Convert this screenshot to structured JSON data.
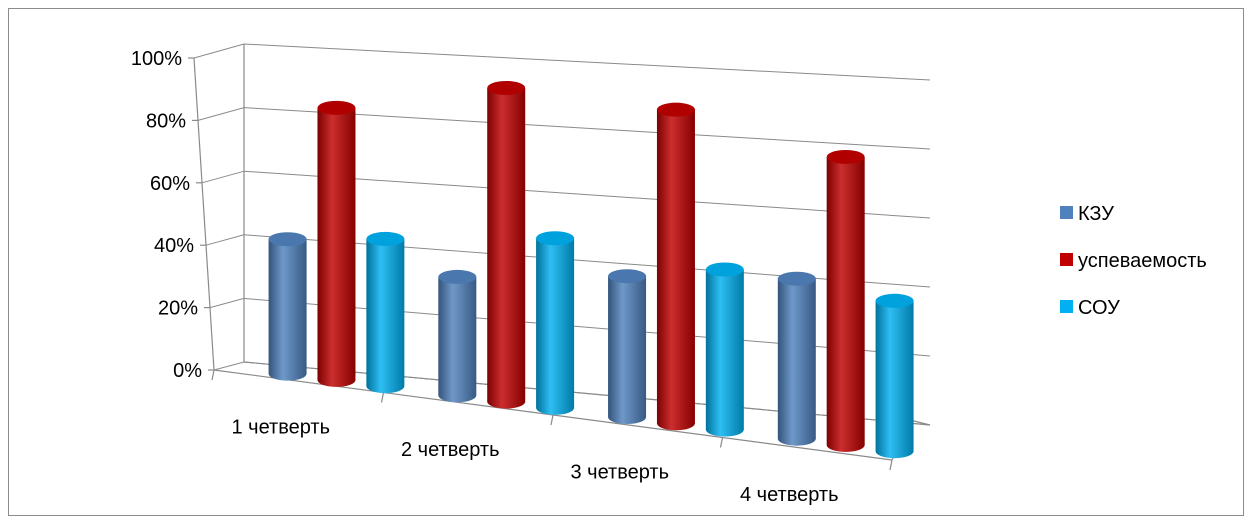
{
  "chart_data": {
    "type": "bar",
    "style": "3d-cylinder",
    "categories": [
      "1 четверть",
      "2 четверть",
      "3 четверть",
      "4 четверть"
    ],
    "series": [
      {
        "name": "КЗУ",
        "values": [
          42,
          37,
          44,
          50
        ],
        "color": "#4f81bd"
      },
      {
        "name": "успеваемость",
        "values": [
          85,
          98,
          98,
          90
        ],
        "color": "#c00000"
      },
      {
        "name": "СОУ",
        "values": [
          46,
          53,
          50,
          47
        ],
        "color": "#00b0f0"
      }
    ],
    "y_ticks": [
      "0%",
      "20%",
      "40%",
      "60%",
      "80%",
      "100%"
    ],
    "ylim": [
      0,
      100
    ],
    "grid": true,
    "legend_position": "right"
  }
}
